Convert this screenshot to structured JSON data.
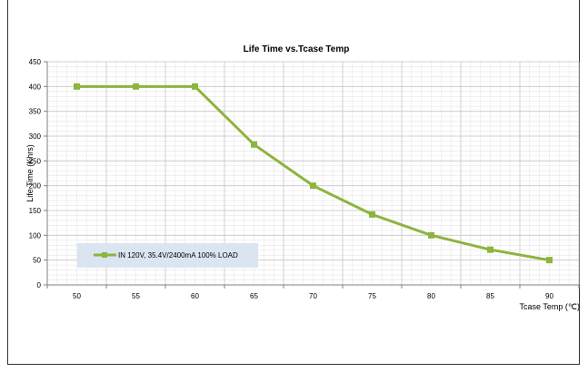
{
  "chart_data": {
    "type": "line",
    "title": "Life Time vs.Tcase Temp",
    "xlabel": "Tcase Temp (℃)",
    "ylabel": "Life Time (Khrs)",
    "categories": [
      "50",
      "55",
      "60",
      "65",
      "70",
      "75",
      "80",
      "85",
      "90"
    ],
    "ylim": [
      0,
      450
    ],
    "yticks": [
      "0",
      "50",
      "100",
      "150",
      "200",
      "250",
      "300",
      "350",
      "400",
      "450"
    ],
    "grid": true,
    "legend_position": "bottom-left",
    "series": [
      {
        "name": "IN 120V, 35.4V/2400mA 100% LOAD",
        "values": [
          400,
          400,
          400,
          283,
          200,
          142,
          100,
          71,
          50
        ],
        "color": "#8db43e"
      }
    ]
  }
}
